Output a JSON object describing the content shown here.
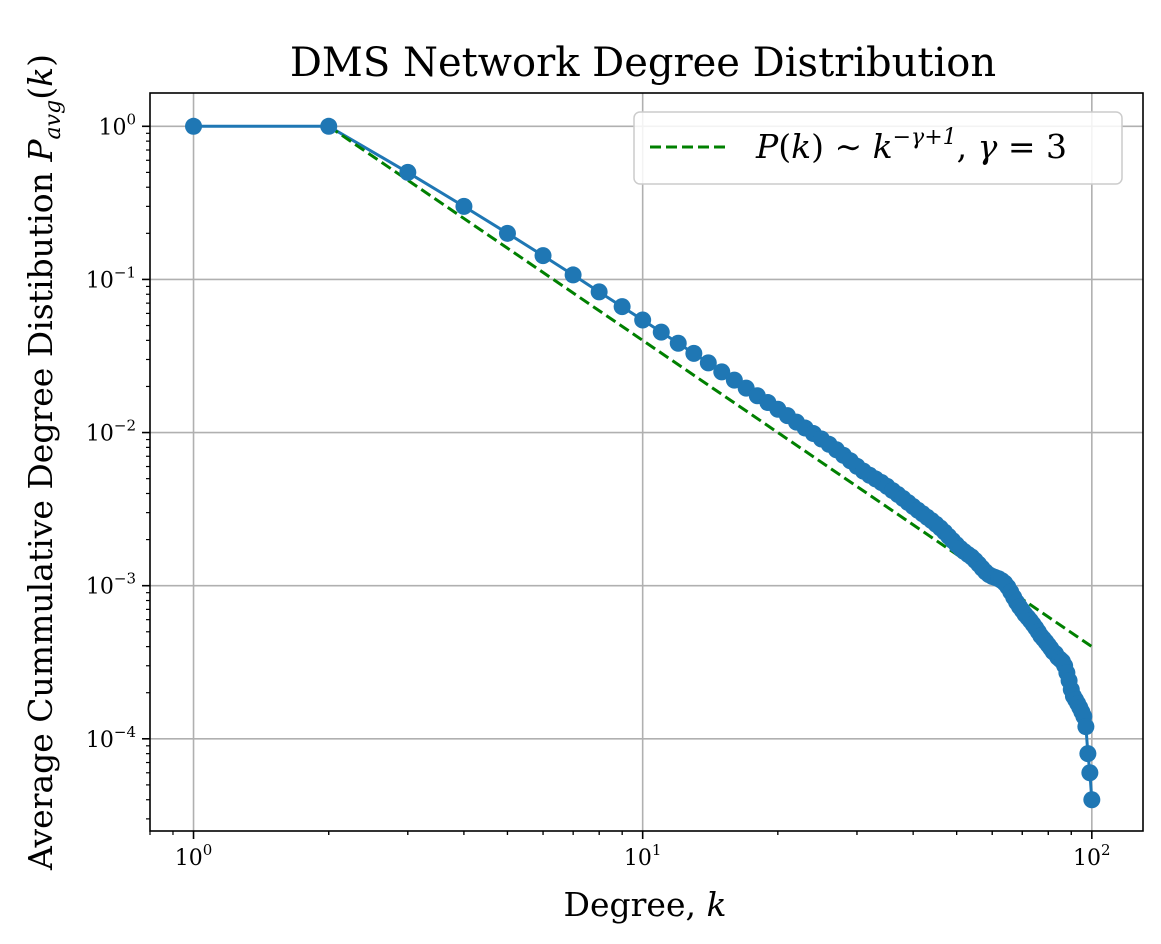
{
  "chart_data": {
    "type": "scatter",
    "title": "DMS Network Degree Distribution",
    "xlabel": "Degree, k",
    "ylabel": "Average Cummulative Degree Distibution P_avg(k)",
    "xscale": "log",
    "yscale": "log",
    "xlim": [
      0.8,
      130
    ],
    "ylim": [
      2.5e-05,
      1.65
    ],
    "grid": true,
    "legend_position": "top-right",
    "x_ticks": [
      {
        "value": 1,
        "base": "10",
        "exp": "0"
      },
      {
        "value": 10,
        "base": "10",
        "exp": "1"
      },
      {
        "value": 100,
        "base": "10",
        "exp": "2"
      }
    ],
    "y_ticks": [
      {
        "value": 1,
        "base": "10",
        "exp": "0"
      },
      {
        "value": 0.1,
        "base": "10",
        "exp": "−1"
      },
      {
        "value": 0.01,
        "base": "10",
        "exp": "−2"
      },
      {
        "value": 0.001,
        "base": "10",
        "exp": "−3"
      },
      {
        "value": 0.0001,
        "base": "10",
        "exp": "−4"
      }
    ],
    "series": [
      {
        "color": "#1f77b4",
        "marker": "circle",
        "line": "solid",
        "x": [
          1,
          2,
          3,
          4,
          5,
          6,
          7,
          8,
          9,
          10,
          11,
          12,
          13,
          14,
          15,
          16,
          17,
          18,
          19,
          20,
          21,
          22,
          23,
          24,
          25,
          26,
          27,
          28,
          29,
          30,
          31,
          32,
          33,
          34,
          35,
          36,
          37,
          38,
          39,
          40,
          41,
          42,
          43,
          44,
          45,
          46,
          47,
          48,
          49,
          50,
          51,
          52,
          53,
          54,
          55,
          56,
          57,
          58,
          59,
          60,
          61,
          62,
          63,
          64,
          65,
          66,
          67,
          68,
          69,
          70,
          71,
          72,
          73,
          74,
          75,
          76,
          77,
          78,
          79,
          80,
          81,
          82,
          83,
          84,
          85,
          86,
          87,
          88,
          89,
          90,
          91,
          92,
          93,
          94,
          95,
          96,
          97,
          98,
          99,
          100
        ],
        "y": [
          1.0,
          1.0,
          0.5,
          0.3,
          0.2,
          0.143,
          0.107,
          0.0829,
          0.0664,
          0.0543,
          0.0453,
          0.0383,
          0.0329,
          0.0285,
          0.0249,
          0.022,
          0.0195,
          0.0174,
          0.0157,
          0.0142,
          0.0129,
          0.0117,
          0.0107,
          0.00985,
          0.00908,
          0.00838,
          0.00772,
          0.0071,
          0.00654,
          0.00602,
          0.0056,
          0.00526,
          0.00498,
          0.00472,
          0.00445,
          0.00418,
          0.00394,
          0.00371,
          0.00349,
          0.00329,
          0.00311,
          0.00295,
          0.0028,
          0.00266,
          0.00252,
          0.00238,
          0.00224,
          0.0021,
          0.00197,
          0.00185,
          0.00175,
          0.00167,
          0.0016,
          0.00154,
          0.00146,
          0.00138,
          0.0013,
          0.00123,
          0.00118,
          0.00115,
          0.00113,
          0.00111,
          0.00108,
          0.00104,
          0.00098,
          0.00091,
          0.00084,
          0.00078,
          0.00073,
          0.00069,
          0.00065,
          0.00062,
          0.00059,
          0.00056,
          0.00053,
          0.0005,
          0.00047,
          0.00045,
          0.00043,
          0.00041,
          0.00039,
          0.00037,
          0.00036,
          0.00034,
          0.00033,
          0.00032,
          0.0003,
          0.00027,
          0.00024,
          0.00021,
          0.00019,
          0.00018,
          0.00017,
          0.00016,
          0.00015,
          0.00014,
          0.00012,
          8e-05,
          6e-05,
          4e-05
        ]
      },
      {
        "name": "P(k) ∼ k^(−γ+1), γ = 3",
        "color": "#008000",
        "line": "dashed",
        "x": [
          2,
          100
        ],
        "y": [
          1.0,
          0.0004
        ]
      }
    ]
  }
}
